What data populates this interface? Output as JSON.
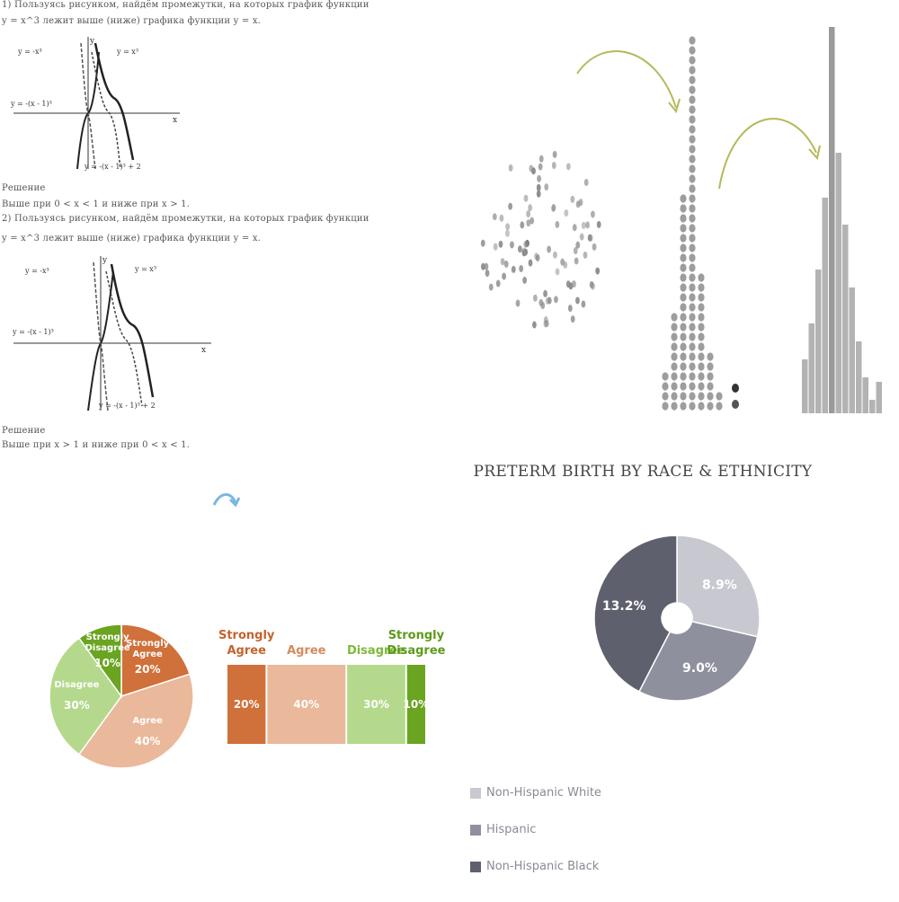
{
  "math": {
    "lines": [
      {
        "text": "1) Пользуясь рисунком, найдём промежутки, на которых график функции",
        "top": 0
      },
      {
        "text": "y = x^3 лежит выше (ниже) графика функции y = x.",
        "top": 18
      },
      {
        "text": "Решение",
        "top": 204
      },
      {
        "text": "Выше при 0 < x < 1 и ниже при x > 1.",
        "top": 222
      },
      {
        "text": "2) Пользуясь рисунком, найдём промежутки, на которых график функции",
        "top": 238
      },
      {
        "text": "y = x^3 лежит выше (ниже) графика функции y = x.",
        "top": 260
      },
      {
        "text": "Решение",
        "top": 474
      },
      {
        "text": "Выше при x > 1 и ниже при 0 < x < 1.",
        "top": 490
      }
    ],
    "plot1": {
      "labels": [
        "y",
        "y = -x³",
        "y = x³",
        "y = -(x - 1)³",
        "x",
        "y = -(x - 1)³ + 2"
      ]
    },
    "plot2": {
      "labels": [
        "y",
        "y = -x³",
        "y = x³",
        "y = -(x - 1)³",
        "x",
        "y = -(x - 1)³ + 2"
      ]
    }
  },
  "distribution": {
    "arrow_color": "#b5b95a",
    "dot_color": "#8c8c8c",
    "bar_color": "#b3b3b3",
    "bar_highlight": "#9a9a9a"
  },
  "chart_data": [
    {
      "type": "pie",
      "categories": [
        "Strongly Agree",
        "Agree",
        "Disagree",
        "Strongly Disagree"
      ],
      "values": [
        20,
        40,
        30,
        10
      ],
      "value_labels": [
        "20%",
        "40%",
        "30%",
        "10%"
      ],
      "colors": [
        "#d0703a",
        "#eab89a",
        "#b4d98c",
        "#6aa421"
      ],
      "label_colors": [
        "#ffffff",
        "#ffffff",
        "#ffffff",
        "#ffffff"
      ]
    },
    {
      "type": "bar",
      "orientation": "stacked-horizontal",
      "categories": [
        "Strongly Agree",
        "Agree",
        "Disagree",
        "Strongly Disagree"
      ],
      "header_labels": [
        [
          "Strongly",
          "Agree"
        ],
        [
          "Agree"
        ],
        [
          "Disagree"
        ],
        [
          "Strongly",
          "Disagree"
        ]
      ],
      "values": [
        20,
        40,
        30,
        10
      ],
      "value_labels": [
        "20%",
        "40%",
        "30%",
        "10%"
      ],
      "colors": [
        "#d0703a",
        "#eab89a",
        "#b4d98c",
        "#6aa421"
      ],
      "header_colors": [
        "#c4642e",
        "#d58b5e",
        "#7fb83a",
        "#5e9a1c"
      ]
    },
    {
      "type": "pie",
      "subtype": "donut",
      "title": "PRETERM BIRTH BY RACE & ETHNICITY",
      "categories": [
        "Non-Hispanic White",
        "Hispanic",
        "Non-Hispanic Black"
      ],
      "values": [
        8.9,
        9.0,
        13.2
      ],
      "value_labels": [
        "8.9%",
        "9.0%",
        "13.2%"
      ],
      "colors": [
        "#c8c9d0",
        "#8f909d",
        "#5f606e"
      ],
      "legend": "bottom-left"
    }
  ]
}
